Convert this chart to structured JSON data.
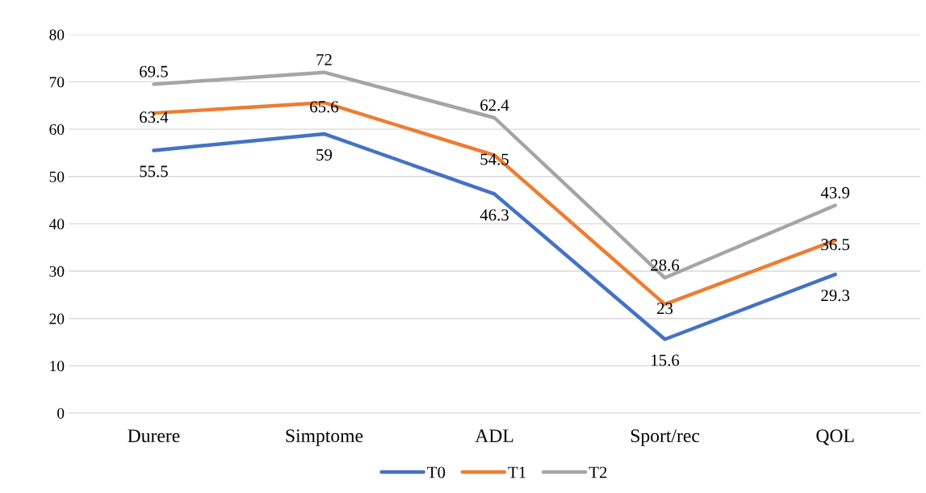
{
  "chart_data": {
    "type": "line",
    "categories": [
      "Durere",
      "Simptome",
      "ADL",
      "Sport/rec",
      "QOL"
    ],
    "series": [
      {
        "name": "T0",
        "color": "#4472c4",
        "values": [
          55.5,
          59,
          46.3,
          15.6,
          29.3
        ]
      },
      {
        "name": "T1",
        "color": "#ed7d31",
        "values": [
          63.4,
          65.6,
          54.5,
          23,
          36.5
        ]
      },
      {
        "name": "T2",
        "color": "#a5a5a5",
        "values": [
          69.5,
          72,
          62.4,
          28.6,
          43.9
        ]
      }
    ],
    "ylim": [
      0,
      80
    ],
    "yticks": [
      0,
      10,
      20,
      30,
      40,
      50,
      60,
      70,
      80
    ],
    "grid": "y",
    "legend": "bottom",
    "marker": "none",
    "line_style": "solid",
    "data_labels": true
  }
}
